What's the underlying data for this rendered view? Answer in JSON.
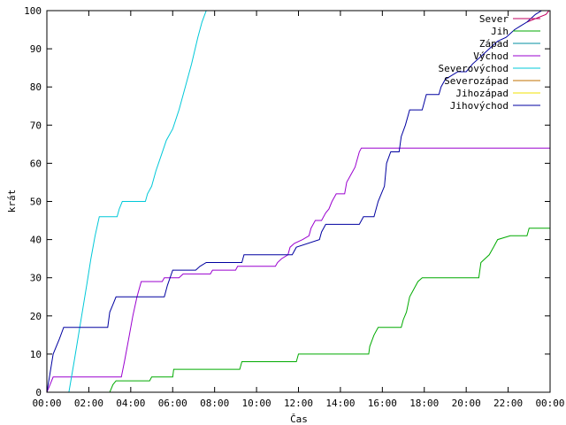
{
  "chart_data": {
    "type": "line",
    "xlabel": "Čas",
    "ylabel": "krát",
    "x_unit": "hours",
    "xlim": [
      0,
      24
    ],
    "ylim": [
      0,
      100
    ],
    "x_ticks": [
      {
        "x": 0,
        "label": "00:00"
      },
      {
        "x": 2,
        "label": "02:00"
      },
      {
        "x": 4,
        "label": "04:00"
      },
      {
        "x": 6,
        "label": "06:00"
      },
      {
        "x": 8,
        "label": "08:00"
      },
      {
        "x": 10,
        "label": "10:00"
      },
      {
        "x": 12,
        "label": "12:00"
      },
      {
        "x": 14,
        "label": "14:00"
      },
      {
        "x": 16,
        "label": "16:00"
      },
      {
        "x": 18,
        "label": "18:00"
      },
      {
        "x": 20,
        "label": "20:00"
      },
      {
        "x": 22,
        "label": "22:00"
      },
      {
        "x": 24,
        "label": "00:00"
      }
    ],
    "y_ticks": [
      {
        "y": 0,
        "label": "0"
      },
      {
        "y": 10,
        "label": "10"
      },
      {
        "y": 20,
        "label": "20"
      },
      {
        "y": 30,
        "label": "30"
      },
      {
        "y": 40,
        "label": "40"
      },
      {
        "y": 50,
        "label": "50"
      },
      {
        "y": 60,
        "label": "60"
      },
      {
        "y": 70,
        "label": "70"
      },
      {
        "y": 80,
        "label": "80"
      },
      {
        "y": 90,
        "label": "90"
      },
      {
        "y": 100,
        "label": "100"
      }
    ],
    "grid": false,
    "legend_position": "top-right",
    "series": [
      {
        "name": "Sever",
        "color": "#c00060",
        "points": [
          [
            22.9,
            97
          ],
          [
            23.8,
            99
          ],
          [
            23.95,
            100
          ]
        ]
      },
      {
        "name": "Jih",
        "color": "#00aa00",
        "points": [
          [
            0,
            0
          ],
          [
            3.0,
            0
          ],
          [
            3.15,
            2
          ],
          [
            3.3,
            3
          ],
          [
            4.9,
            3
          ],
          [
            5.0,
            4
          ],
          [
            6.0,
            4
          ],
          [
            6.05,
            6
          ],
          [
            9.2,
            6
          ],
          [
            9.3,
            8
          ],
          [
            11.9,
            8
          ],
          [
            12.0,
            10
          ],
          [
            15.35,
            10
          ],
          [
            15.4,
            12
          ],
          [
            15.6,
            15
          ],
          [
            15.8,
            17
          ],
          [
            16.9,
            17
          ],
          [
            17.0,
            19
          ],
          [
            17.15,
            21
          ],
          [
            17.3,
            25
          ],
          [
            17.5,
            27
          ],
          [
            17.7,
            29
          ],
          [
            17.9,
            30
          ],
          [
            20.6,
            30
          ],
          [
            20.7,
            34
          ],
          [
            21.1,
            36
          ],
          [
            21.3,
            38
          ],
          [
            21.5,
            40
          ],
          [
            22.1,
            41
          ],
          [
            22.9,
            41
          ],
          [
            23.0,
            43
          ],
          [
            24.0,
            43
          ]
        ]
      },
      {
        "name": "Západ",
        "color": "#008fa0",
        "points": []
      },
      {
        "name": "Východ",
        "color": "#9a00cf",
        "points": [
          [
            0,
            0
          ],
          [
            0.15,
            2
          ],
          [
            0.3,
            4
          ],
          [
            3.55,
            4
          ],
          [
            3.7,
            8
          ],
          [
            3.9,
            14
          ],
          [
            4.1,
            20
          ],
          [
            4.3,
            25
          ],
          [
            4.5,
            29
          ],
          [
            5.5,
            29
          ],
          [
            5.6,
            30
          ],
          [
            6.3,
            30
          ],
          [
            6.5,
            31
          ],
          [
            7.8,
            31
          ],
          [
            7.9,
            32
          ],
          [
            9.0,
            32
          ],
          [
            9.1,
            33
          ],
          [
            10.9,
            33
          ],
          [
            11.0,
            34
          ],
          [
            11.2,
            35
          ],
          [
            11.5,
            36
          ],
          [
            11.6,
            38
          ],
          [
            11.8,
            39
          ],
          [
            12.2,
            40
          ],
          [
            12.5,
            41
          ],
          [
            12.6,
            43
          ],
          [
            12.8,
            45
          ],
          [
            13.1,
            45
          ],
          [
            13.3,
            47
          ],
          [
            13.45,
            48
          ],
          [
            13.6,
            50
          ],
          [
            13.8,
            52
          ],
          [
            14.2,
            52
          ],
          [
            14.3,
            55
          ],
          [
            14.5,
            57
          ],
          [
            14.7,
            59
          ],
          [
            14.8,
            61
          ],
          [
            14.9,
            63
          ],
          [
            15.0,
            64
          ],
          [
            24.0,
            64
          ]
        ]
      },
      {
        "name": "Severovýchod",
        "color": "#00c8d8",
        "points": [
          [
            1.05,
            0
          ],
          [
            1.3,
            8
          ],
          [
            1.6,
            18
          ],
          [
            1.9,
            28
          ],
          [
            2.1,
            35
          ],
          [
            2.3,
            41
          ],
          [
            2.5,
            46
          ],
          [
            3.35,
            46
          ],
          [
            3.45,
            48
          ],
          [
            3.6,
            50
          ],
          [
            4.7,
            50
          ],
          [
            4.8,
            52
          ],
          [
            5.0,
            54
          ],
          [
            5.2,
            58
          ],
          [
            5.45,
            62
          ],
          [
            5.7,
            66
          ],
          [
            6.0,
            69
          ],
          [
            6.3,
            74
          ],
          [
            6.6,
            80
          ],
          [
            6.9,
            86
          ],
          [
            7.2,
            93
          ],
          [
            7.4,
            97
          ],
          [
            7.6,
            100
          ]
        ]
      },
      {
        "name": "Severozápad",
        "color": "#c07000",
        "points": []
      },
      {
        "name": "Jihozápad",
        "color": "#f0e000",
        "points": []
      },
      {
        "name": "Jihovýchod",
        "color": "#0000a0",
        "points": [
          [
            0,
            0
          ],
          [
            0.15,
            5
          ],
          [
            0.3,
            10
          ],
          [
            0.6,
            14
          ],
          [
            0.8,
            17
          ],
          [
            2.9,
            17
          ],
          [
            3.0,
            21
          ],
          [
            3.15,
            23
          ],
          [
            3.3,
            25
          ],
          [
            5.6,
            25
          ],
          [
            5.75,
            28
          ],
          [
            6.0,
            32
          ],
          [
            7.1,
            32
          ],
          [
            7.3,
            33
          ],
          [
            7.6,
            34
          ],
          [
            9.3,
            34
          ],
          [
            9.4,
            36
          ],
          [
            11.7,
            36
          ],
          [
            11.9,
            38
          ],
          [
            13.0,
            40
          ],
          [
            13.1,
            42
          ],
          [
            13.3,
            44
          ],
          [
            14.9,
            44
          ],
          [
            15.1,
            46
          ],
          [
            15.6,
            46
          ],
          [
            15.8,
            50
          ],
          [
            16.1,
            54
          ],
          [
            16.2,
            60
          ],
          [
            16.4,
            63
          ],
          [
            16.8,
            63
          ],
          [
            16.9,
            67
          ],
          [
            17.1,
            70
          ],
          [
            17.3,
            74
          ],
          [
            17.9,
            74
          ],
          [
            18.1,
            78
          ],
          [
            18.7,
            78
          ],
          [
            18.8,
            80
          ],
          [
            19.0,
            82
          ],
          [
            19.3,
            83
          ],
          [
            19.6,
            84
          ],
          [
            20.0,
            84
          ],
          [
            20.3,
            86
          ],
          [
            20.7,
            88
          ],
          [
            21.1,
            90
          ],
          [
            21.5,
            92
          ],
          [
            21.9,
            93
          ],
          [
            22.3,
            95
          ],
          [
            22.6,
            96
          ],
          [
            22.9,
            97
          ],
          [
            23.3,
            99
          ],
          [
            23.6,
            100
          ]
        ]
      }
    ]
  }
}
